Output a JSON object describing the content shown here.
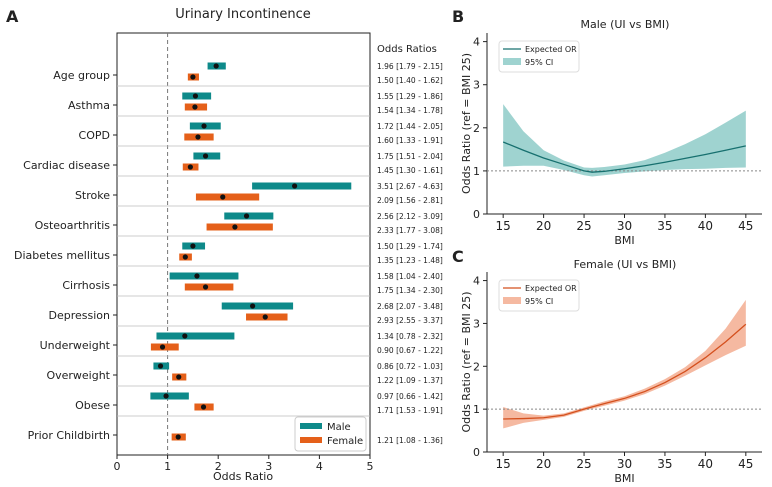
{
  "colors": {
    "male": "#0e8a8a",
    "female": "#e5601a",
    "male_line": "#17706f",
    "male_band": "#9fd3d0",
    "female_line": "#d4501e",
    "female_band": "#f5b9a1",
    "ref_line": "#888888"
  },
  "chart_data": [
    {
      "type": "forest",
      "panel_label": "A",
      "title": "Urinary Incontinence",
      "xlabel": "Odds Ratio",
      "xlim": [
        0,
        5
      ],
      "xticks": [
        "0",
        "1",
        "2",
        "3",
        "4",
        "5"
      ],
      "reference_line": 1,
      "or_column_header": "Odds Ratios",
      "legend": {
        "placement": "bottom-right",
        "entries": [
          "Male",
          "Female"
        ]
      },
      "rows": [
        {
          "label": "Age group",
          "male": {
            "or": 1.96,
            "lo": 1.79,
            "hi": 2.15,
            "text": "1.96 [1.79 - 2.15]"
          },
          "female": {
            "or": 1.5,
            "lo": 1.4,
            "hi": 1.62,
            "text": "1.50 [1.40 - 1.62]"
          }
        },
        {
          "label": "Asthma",
          "male": {
            "or": 1.55,
            "lo": 1.29,
            "hi": 1.86,
            "text": "1.55 [1.29 - 1.86]"
          },
          "female": {
            "or": 1.54,
            "lo": 1.34,
            "hi": 1.78,
            "text": "1.54 [1.34 - 1.78]"
          }
        },
        {
          "label": "COPD",
          "male": {
            "or": 1.72,
            "lo": 1.44,
            "hi": 2.05,
            "text": "1.72 [1.44 - 2.05]"
          },
          "female": {
            "or": 1.6,
            "lo": 1.33,
            "hi": 1.91,
            "text": "1.60 [1.33 - 1.91]"
          }
        },
        {
          "label": "Cardiac disease",
          "male": {
            "or": 1.75,
            "lo": 1.51,
            "hi": 2.04,
            "text": "1.75 [1.51 - 2.04]"
          },
          "female": {
            "or": 1.45,
            "lo": 1.3,
            "hi": 1.61,
            "text": "1.45 [1.30 - 1.61]"
          }
        },
        {
          "label": "Stroke",
          "male": {
            "or": 3.51,
            "lo": 2.67,
            "hi": 4.63,
            "text": "3.51 [2.67 - 4.63]"
          },
          "female": {
            "or": 2.09,
            "lo": 1.56,
            "hi": 2.81,
            "text": "2.09 [1.56 - 2.81]"
          }
        },
        {
          "label": "Osteoarthritis",
          "male": {
            "or": 2.56,
            "lo": 2.12,
            "hi": 3.09,
            "text": "2.56 [2.12 - 3.09]"
          },
          "female": {
            "or": 2.33,
            "lo": 1.77,
            "hi": 3.08,
            "text": "2.33 [1.77 - 3.08]"
          }
        },
        {
          "label": "Diabetes mellitus",
          "male": {
            "or": 1.5,
            "lo": 1.29,
            "hi": 1.74,
            "text": "1.50 [1.29 - 1.74]"
          },
          "female": {
            "or": 1.35,
            "lo": 1.23,
            "hi": 1.48,
            "text": "1.35 [1.23 - 1.48]"
          }
        },
        {
          "label": "Cirrhosis",
          "male": {
            "or": 1.58,
            "lo": 1.04,
            "hi": 2.4,
            "text": "1.58 [1.04 - 2.40]"
          },
          "female": {
            "or": 1.75,
            "lo": 1.34,
            "hi": 2.3,
            "text": "1.75 [1.34 - 2.30]"
          }
        },
        {
          "label": "Depression",
          "male": {
            "or": 2.68,
            "lo": 2.07,
            "hi": 3.48,
            "text": "2.68 [2.07 - 3.48]"
          },
          "female": {
            "or": 2.93,
            "lo": 2.55,
            "hi": 3.37,
            "text": "2.93 [2.55 - 3.37]"
          }
        },
        {
          "label": "Underweight",
          "male": {
            "or": 1.34,
            "lo": 0.78,
            "hi": 2.32,
            "text": "1.34 [0.78 - 2.32]"
          },
          "female": {
            "or": 0.9,
            "lo": 0.67,
            "hi": 1.22,
            "text": "0.90 [0.67 - 1.22]"
          }
        },
        {
          "label": "Overweight",
          "male": {
            "or": 0.86,
            "lo": 0.72,
            "hi": 1.03,
            "text": "0.86 [0.72 - 1.03]"
          },
          "female": {
            "or": 1.22,
            "lo": 1.09,
            "hi": 1.37,
            "text": "1.22 [1.09 - 1.37]"
          }
        },
        {
          "label": "Obese",
          "male": {
            "or": 0.97,
            "lo": 0.66,
            "hi": 1.42,
            "text": "0.97 [0.66 - 1.42]"
          },
          "female": {
            "or": 1.71,
            "lo": 1.53,
            "hi": 1.91,
            "text": "1.71 [1.53 - 1.91]"
          }
        },
        {
          "label": "Prior Childbirth",
          "male": null,
          "female": {
            "or": 1.21,
            "lo": 1.08,
            "hi": 1.36,
            "text": "1.21 [1.08 - 1.36]"
          }
        }
      ]
    },
    {
      "type": "line",
      "panel_label": "B",
      "title": "Male (UI vs BMI)",
      "xlabel": "BMI",
      "ylabel": "Odds Ratio (ref = BMI 25)",
      "xlim": [
        13,
        47
      ],
      "ylim": [
        0,
        4.2
      ],
      "xticks": [
        15,
        20,
        25,
        30,
        35,
        40,
        45
      ],
      "yticks": [
        0,
        1,
        2,
        3,
        4
      ],
      "reference_line": 1,
      "legend": {
        "placement": "top-left",
        "entries": [
          "Expected OR",
          "95% CI"
        ]
      },
      "x": [
        15,
        17.5,
        20,
        22.5,
        25,
        26,
        27.5,
        30,
        32.5,
        35,
        37.5,
        40,
        42.5,
        45
      ],
      "y": [
        1.67,
        1.48,
        1.3,
        1.15,
        1.0,
        0.97,
        0.99,
        1.05,
        1.12,
        1.2,
        1.29,
        1.38,
        1.48,
        1.58
      ],
      "lower": [
        1.1,
        1.12,
        1.12,
        1.02,
        0.9,
        0.87,
        0.9,
        0.95,
        0.99,
        1.02,
        1.04,
        1.05,
        1.07,
        1.08
      ],
      "upper": [
        2.55,
        1.92,
        1.48,
        1.24,
        1.08,
        1.07,
        1.09,
        1.15,
        1.25,
        1.42,
        1.62,
        1.85,
        2.12,
        2.4
      ]
    },
    {
      "type": "line",
      "panel_label": "C",
      "title": "Female (UI vs BMI)",
      "xlabel": "BMI",
      "ylabel": "Odds Ratio (ref = BMI 25)",
      "xlim": [
        13,
        47
      ],
      "ylim": [
        0,
        4.2
      ],
      "xticks": [
        15,
        20,
        25,
        30,
        35,
        40,
        45
      ],
      "yticks": [
        0,
        1,
        2,
        3,
        4
      ],
      "reference_line": 1,
      "legend": {
        "placement": "top-left",
        "entries": [
          "Expected OR",
          "95% CI"
        ]
      },
      "x": [
        15,
        17.5,
        20,
        22.5,
        25,
        27.5,
        30,
        32.5,
        35,
        37.5,
        40,
        42.5,
        45
      ],
      "y": [
        0.77,
        0.78,
        0.8,
        0.86,
        1.0,
        1.13,
        1.25,
        1.41,
        1.62,
        1.88,
        2.2,
        2.57,
        2.98
      ],
      "lower": [
        0.55,
        0.68,
        0.75,
        0.82,
        0.96,
        1.08,
        1.2,
        1.35,
        1.55,
        1.78,
        2.02,
        2.26,
        2.48
      ],
      "upper": [
        1.05,
        0.9,
        0.85,
        0.9,
        1.04,
        1.18,
        1.3,
        1.48,
        1.7,
        1.98,
        2.36,
        2.88,
        3.55
      ]
    }
  ]
}
